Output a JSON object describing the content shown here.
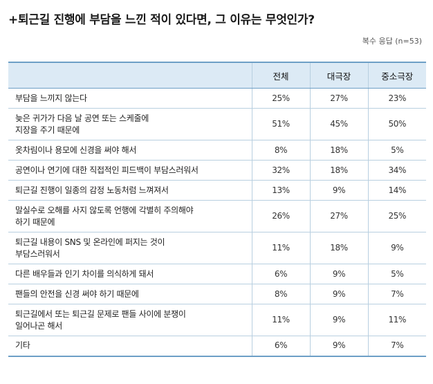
{
  "title": "+퇴근길 진행에 부담을 느낀 적이 있다면, 그 이유는 무엇인가?",
  "note": "복수 응답 (n=53)",
  "columns": [
    "전체",
    "대극장",
    "중소극장"
  ],
  "rows": [
    {
      "lines": [
        "부담을 느끼지 않는다"
      ],
      "values": [
        "25%",
        "27%",
        "23%"
      ]
    },
    {
      "lines": [
        "늦은 귀가가 다음 날 공연 또는 스케줄에",
        "지장을 주기 때문에"
      ],
      "values": [
        "51%",
        "45%",
        "50%"
      ]
    },
    {
      "lines": [
        "옷차림이나 용모에 신경을 써야 해서"
      ],
      "values": [
        "8%",
        "18%",
        "5%"
      ]
    },
    {
      "lines": [
        "공연이나 연기에 대한 직접적인 피드백이 부담스러워서"
      ],
      "values": [
        "32%",
        "18%",
        "34%"
      ]
    },
    {
      "lines": [
        "퇴근길 진행이 일종의 감정 노동처럼 느껴져서"
      ],
      "values": [
        "13%",
        "9%",
        "14%"
      ]
    },
    {
      "lines": [
        "말실수로 오해를 사지 않도록 언행에 각별히 주의해야",
        "하기 때문에"
      ],
      "values": [
        "26%",
        "27%",
        "25%"
      ]
    },
    {
      "lines": [
        "퇴근길 내용이 SNS 및 온라인에 퍼지는 것이",
        "부담스러워서"
      ],
      "values": [
        "11%",
        "18%",
        "9%"
      ]
    },
    {
      "lines": [
        "다른 배우들과 인기 차이를 의식하게 돼서"
      ],
      "values": [
        "6%",
        "9%",
        "5%"
      ]
    },
    {
      "lines": [
        "팬들의 안전을 신경 써야 하기 때문에"
      ],
      "values": [
        "8%",
        "9%",
        "7%"
      ]
    },
    {
      "lines": [
        "퇴근길에서 또는 퇴근길 문제로 팬들 사이에 분쟁이",
        "일어나곤 해서"
      ],
      "values": [
        "11%",
        "9%",
        "11%"
      ]
    },
    {
      "lines": [
        "기타"
      ],
      "values": [
        "6%",
        "9%",
        "7%"
      ]
    }
  ]
}
